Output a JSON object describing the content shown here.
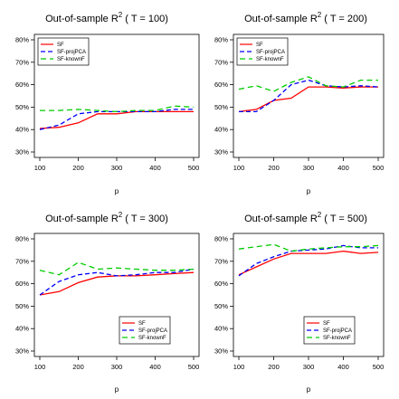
{
  "figure": {
    "colors": {
      "SF": "#ff0000",
      "SF-projPCA": "#0000ff",
      "SF-knownF": "#00cc00"
    },
    "panels": [
      {
        "title_main": "Out-of-sample R",
        "title_sup": "2",
        "title_rest": " ( T =  100)",
        "xlabel": "p"
      },
      {
        "title_main": "Out-of-sample R",
        "title_sup": "2",
        "title_rest": " ( T =  200)",
        "xlabel": "p"
      },
      {
        "title_main": "Out-of-sample R",
        "title_sup": "2",
        "title_rest": " ( T =  300)",
        "xlabel": "p"
      },
      {
        "title_main": "Out-of-sample R",
        "title_sup": "2",
        "title_rest": " ( T =  500)",
        "xlabel": "p"
      }
    ]
  },
  "chart_data": [
    {
      "type": "line",
      "title": "Out-of-sample R2 ( T =  100)",
      "xlabel": "p",
      "ylabel": "",
      "x": [
        100,
        150,
        200,
        250,
        300,
        350,
        400,
        450,
        500
      ],
      "xticks": [
        "100",
        "200",
        "300",
        "400",
        "500"
      ],
      "yticks": [
        "30%",
        "40%",
        "50%",
        "60%",
        "70%",
        "80%"
      ],
      "xlim": [
        100,
        500
      ],
      "ylim": [
        0.3,
        0.8
      ],
      "legend_position": "top-left",
      "series": [
        {
          "name": "SF",
          "values": [
            0.405,
            0.41,
            0.43,
            0.47,
            0.47,
            0.48,
            0.48,
            0.48,
            0.48
          ]
        },
        {
          "name": "SF-projPCA",
          "values": [
            0.4,
            0.42,
            0.47,
            0.48,
            0.48,
            0.48,
            0.48,
            0.49,
            0.49
          ]
        },
        {
          "name": "SF-knownF",
          "values": [
            0.485,
            0.485,
            0.49,
            0.485,
            0.48,
            0.485,
            0.485,
            0.505,
            0.5
          ]
        }
      ]
    },
    {
      "type": "line",
      "title": "Out-of-sample R2 ( T =  200)",
      "xlabel": "p",
      "ylabel": "",
      "x": [
        100,
        150,
        200,
        250,
        300,
        350,
        400,
        450,
        500
      ],
      "xticks": [
        "100",
        "200",
        "300",
        "400",
        "500"
      ],
      "yticks": [
        "30%",
        "40%",
        "50%",
        "60%",
        "70%",
        "80%"
      ],
      "xlim": [
        100,
        500
      ],
      "ylim": [
        0.3,
        0.8
      ],
      "legend_position": "top-left",
      "series": [
        {
          "name": "SF",
          "values": [
            0.48,
            0.49,
            0.53,
            0.54,
            0.59,
            0.59,
            0.585,
            0.59,
            0.59
          ]
        },
        {
          "name": "SF-projPCA",
          "values": [
            0.48,
            0.48,
            0.53,
            0.6,
            0.62,
            0.595,
            0.59,
            0.595,
            0.59
          ]
        },
        {
          "name": "SF-knownF",
          "values": [
            0.58,
            0.595,
            0.57,
            0.61,
            0.635,
            0.595,
            0.59,
            0.62,
            0.62
          ]
        }
      ]
    },
    {
      "type": "line",
      "title": "Out-of-sample R2 ( T =  300)",
      "xlabel": "p",
      "ylabel": "",
      "x": [
        100,
        150,
        200,
        250,
        300,
        350,
        400,
        450,
        500
      ],
      "xticks": [
        "100",
        "200",
        "300",
        "400",
        "500"
      ],
      "yticks": [
        "30%",
        "40%",
        "50%",
        "60%",
        "70%",
        "80%"
      ],
      "xlim": [
        100,
        500
      ],
      "ylim": [
        0.3,
        0.8
      ],
      "legend_position": "bottom-right",
      "series": [
        {
          "name": "SF",
          "values": [
            0.55,
            0.565,
            0.605,
            0.63,
            0.635,
            0.635,
            0.64,
            0.645,
            0.65
          ]
        },
        {
          "name": "SF-projPCA",
          "values": [
            0.55,
            0.61,
            0.64,
            0.65,
            0.635,
            0.64,
            0.65,
            0.65,
            0.665
          ]
        },
        {
          "name": "SF-knownF",
          "values": [
            0.66,
            0.64,
            0.695,
            0.665,
            0.67,
            0.665,
            0.66,
            0.66,
            0.665
          ]
        }
      ]
    },
    {
      "type": "line",
      "title": "Out-of-sample R2 ( T =  500)",
      "xlabel": "p",
      "ylabel": "",
      "x": [
        100,
        150,
        200,
        250,
        300,
        350,
        400,
        450,
        500
      ],
      "xticks": [
        "100",
        "200",
        "300",
        "400",
        "500"
      ],
      "yticks": [
        "30%",
        "40%",
        "50%",
        "60%",
        "70%",
        "80%"
      ],
      "xlim": [
        100,
        500
      ],
      "ylim": [
        0.3,
        0.8
      ],
      "legend_position": "bottom-right",
      "series": [
        {
          "name": "SF",
          "values": [
            0.64,
            0.675,
            0.71,
            0.735,
            0.735,
            0.735,
            0.745,
            0.735,
            0.74
          ]
        },
        {
          "name": "SF-projPCA",
          "values": [
            0.635,
            0.69,
            0.72,
            0.745,
            0.75,
            0.755,
            0.77,
            0.76,
            0.76
          ]
        },
        {
          "name": "SF-knownF",
          "values": [
            0.755,
            0.765,
            0.775,
            0.745,
            0.755,
            0.76,
            0.765,
            0.765,
            0.77
          ]
        }
      ]
    }
  ]
}
